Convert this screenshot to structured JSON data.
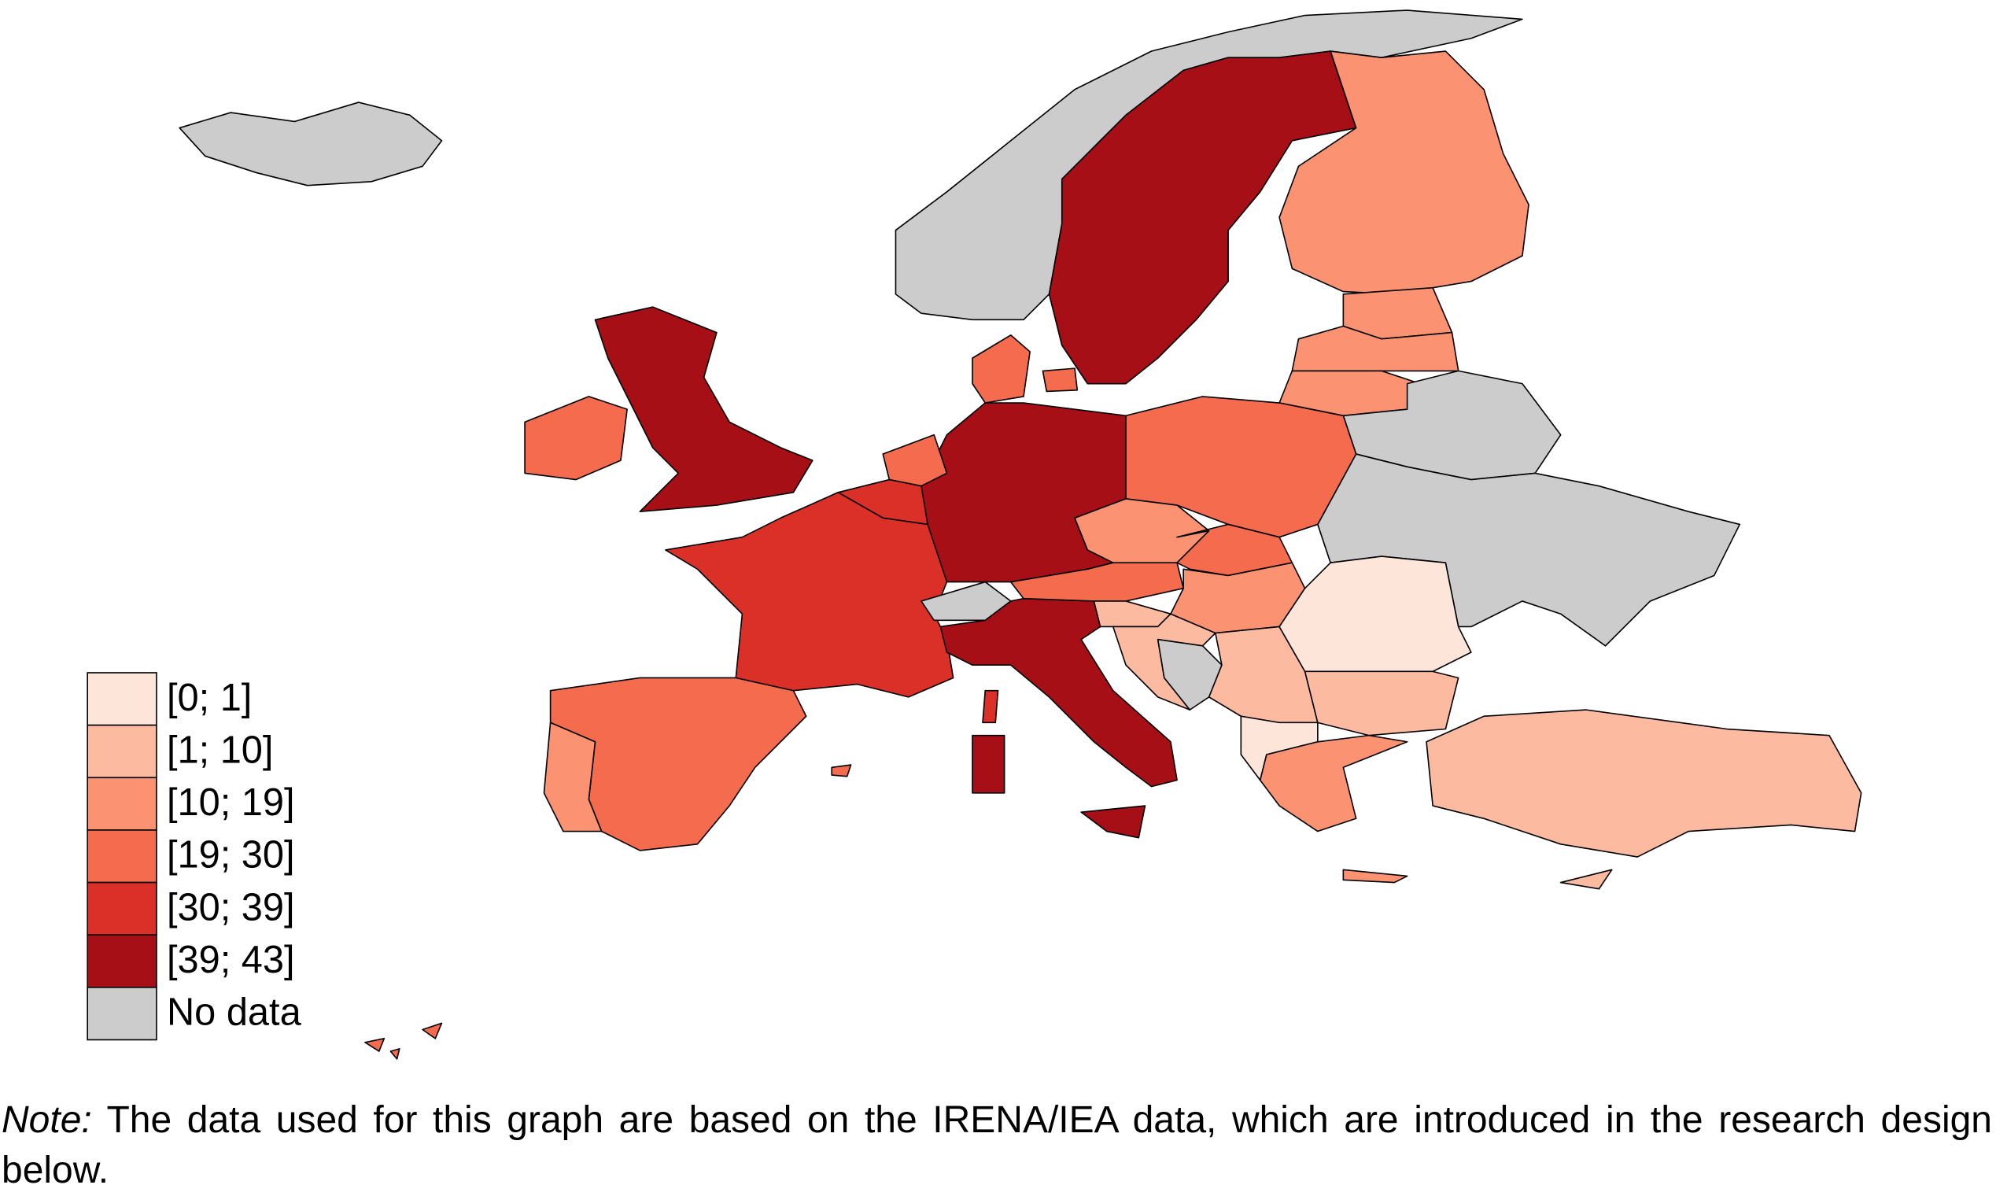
{
  "legend": {
    "items": [
      {
        "label": "[0; 1]",
        "color": "#fee5d9"
      },
      {
        "label": "[1; 10]",
        "color": "#fcbba1"
      },
      {
        "label": "[10; 19]",
        "color": "#fb9272"
      },
      {
        "label": "[19; 30]",
        "color": "#f56b4e"
      },
      {
        "label": "[30; 39]",
        "color": "#da3027"
      },
      {
        "label": "[39; 43]",
        "color": "#a50f15"
      },
      {
        "label": "No data",
        "color": "#cccccc"
      }
    ]
  },
  "note": {
    "prefix": "Note:",
    "text": "The data used for this graph are based on the IRENA/IEA data, which are introduced in the research design below."
  }
}
